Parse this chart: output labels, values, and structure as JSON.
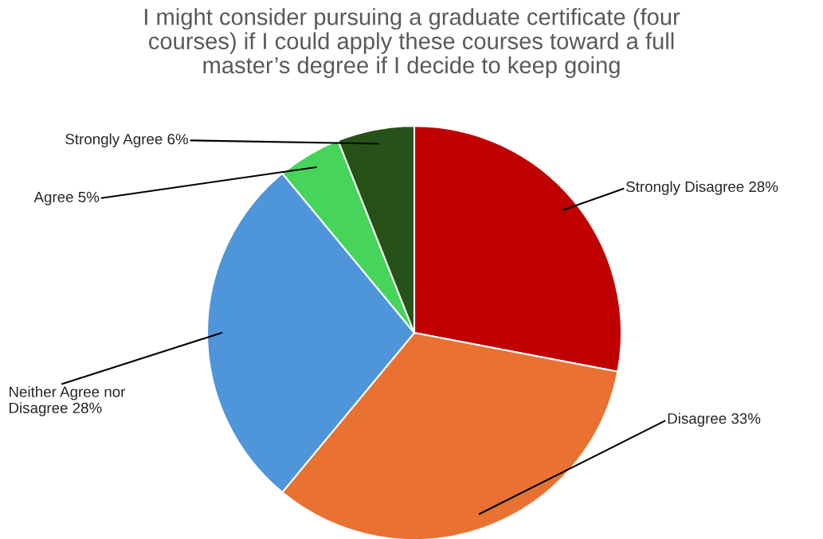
{
  "chart_data": {
    "type": "pie",
    "title": "I might consider pursuing a graduate certificate (four\ncourses) if I could apply these courses toward a full\nmaster’s degree if I decide to keep going",
    "categories": [
      "Strongly Disagree",
      "Disagree",
      "Neither Agree nor Disagree",
      "Agree",
      "Strongly Agree"
    ],
    "values": [
      28,
      33,
      28,
      5,
      6
    ],
    "value_labels": [
      "28%",
      "33%",
      "28%",
      "5%",
      "6%"
    ],
    "colors": [
      "#c00000",
      "#e97132",
      "#4e95d9",
      "#47d45a",
      "#265219"
    ],
    "legend": false
  }
}
